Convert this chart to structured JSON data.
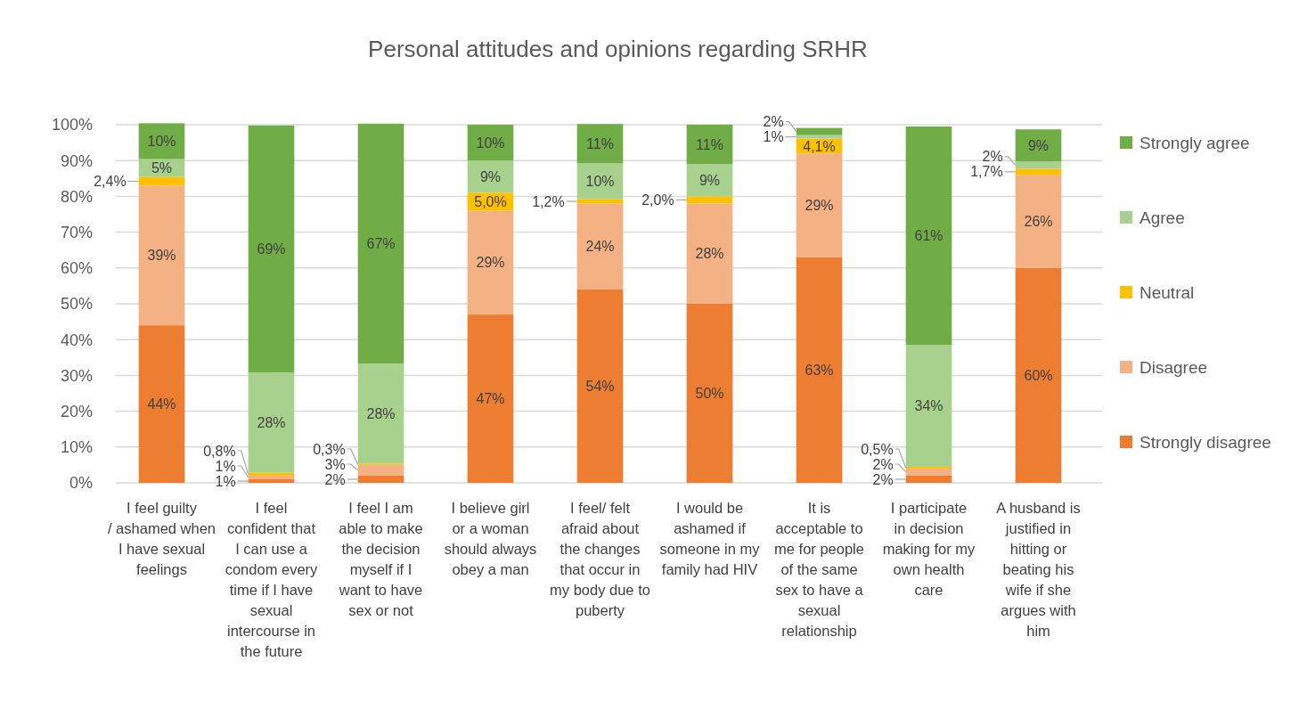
{
  "chart_data": {
    "type": "bar",
    "stacked": true,
    "title": "Personal attitudes and opinions regarding SRHR",
    "categories": [
      "I feel guilty / ashamed when I have sexual feelings",
      "I feel confident that I can use a condom every time if I have sexual intercourse in the future",
      "I feel I am able to make the decision myself if I want to have sex or not",
      "I believe girl or a woman should always obey a man",
      "I feel/ felt afraid about the changes that occur in my body due to puberty",
      "I would be ashamed if someone in my family had HIV",
      "It is acceptable to me for people of the same sex to have a sexual relationship",
      "I participate in decision making for my own health care",
      "A husband is justified in hitting or beating his wife if she argues with him"
    ],
    "series": [
      {
        "name": "Strongly disagree",
        "color": "#ed7d31",
        "values": [
          44,
          1,
          2,
          47,
          54,
          50,
          63,
          2,
          60
        ],
        "value_labels": [
          "44%",
          "1%",
          "2%",
          "47%",
          "54%",
          "50%",
          "63%",
          "2%",
          "60%"
        ]
      },
      {
        "name": "Disagree",
        "color": "#f4b183",
        "values": [
          39,
          1,
          3,
          29,
          24,
          28,
          29,
          2,
          26
        ],
        "value_labels": [
          "39%",
          "1%",
          "3%",
          "29%",
          "24%",
          "28%",
          "29%",
          "2%",
          "26%"
        ]
      },
      {
        "name": "Neutral",
        "color": "#ffc000",
        "values": [
          2.4,
          0.8,
          0.3,
          5.0,
          1.2,
          2.0,
          4.1,
          0.5,
          1.7
        ],
        "value_labels": [
          "2,4%",
          "0,8%",
          "0,3%",
          "5,0%",
          "1,2%",
          "2,0%",
          "4,1%",
          "0,5%",
          "1,7%"
        ]
      },
      {
        "name": "Agree",
        "color": "#a9d18e",
        "values": [
          5,
          28,
          28,
          9,
          10,
          9,
          1,
          34,
          2
        ],
        "value_labels": [
          "5%",
          "28%",
          "28%",
          "9%",
          "10%",
          "9%",
          "1%",
          "34%",
          "2%"
        ]
      },
      {
        "name": "Strongly agree",
        "color": "#70ad47",
        "values": [
          10,
          69,
          67,
          10,
          11,
          11,
          2,
          61,
          9
        ],
        "value_labels": [
          "10%",
          "69%",
          "67%",
          "10%",
          "11%",
          "11%",
          "2%",
          "61%",
          "9%"
        ]
      }
    ],
    "ylim": [
      0,
      100
    ],
    "yticks": [
      {
        "value": 0,
        "label": "0%"
      },
      {
        "value": 10,
        "label": "10%"
      },
      {
        "value": 20,
        "label": "20%"
      },
      {
        "value": 30,
        "label": "30%"
      },
      {
        "value": 40,
        "label": "40%"
      },
      {
        "value": 50,
        "label": "50%"
      },
      {
        "value": 60,
        "label": "60%"
      },
      {
        "value": 70,
        "label": "70%"
      },
      {
        "value": 80,
        "label": "80%"
      },
      {
        "value": 90,
        "label": "90%"
      },
      {
        "value": 100,
        "label": "100%"
      }
    ],
    "grid": "y",
    "legend": "right"
  }
}
